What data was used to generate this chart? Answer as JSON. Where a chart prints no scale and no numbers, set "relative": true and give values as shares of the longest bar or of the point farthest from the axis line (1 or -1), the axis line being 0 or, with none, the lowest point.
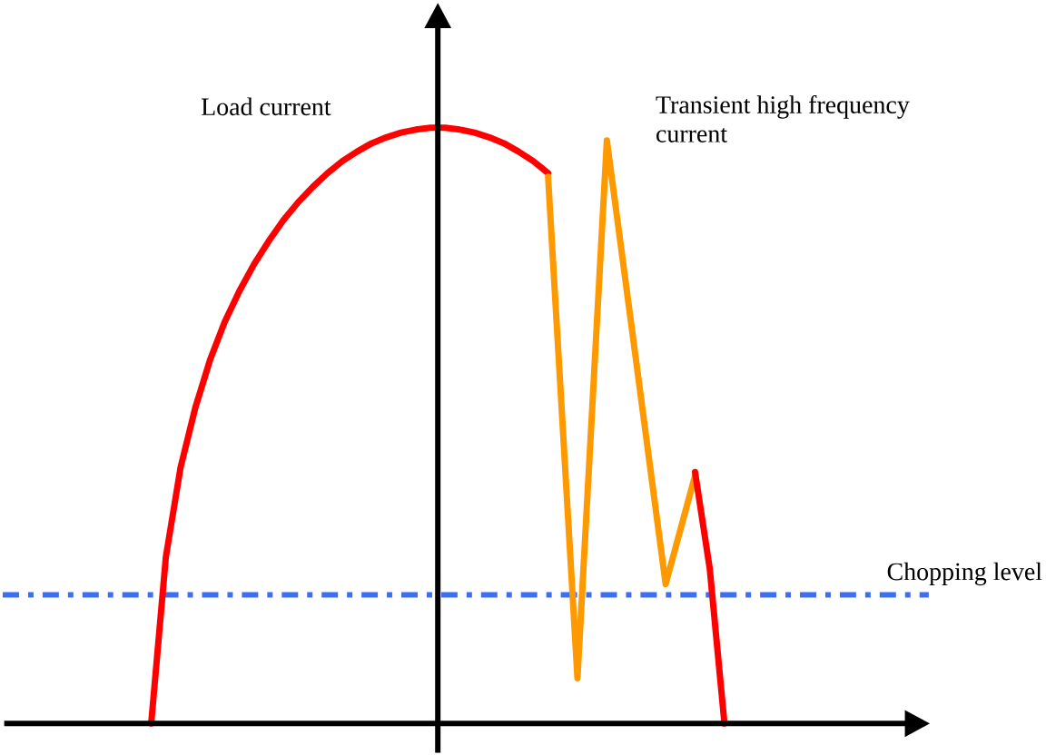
{
  "chart_data": {
    "type": "line",
    "relative": true,
    "categories": [
      null,
      null,
      null,
      null,
      null,
      null,
      null,
      null,
      null,
      null,
      null,
      null,
      null,
      null,
      null,
      null,
      null,
      null,
      null,
      null,
      null,
      null,
      null,
      null,
      null,
      null,
      null,
      null,
      null,
      null,
      null,
      null,
      null,
      null,
      null,
      null,
      null,
      null,
      null,
      null
    ],
    "series": [
      {
        "name": "Load current",
        "color": "#ff0000",
        "values": [
          0,
          0.28,
          0.43,
          0.53,
          0.61,
          0.674,
          0.726,
          0.771,
          0.81,
          0.845,
          0.875,
          0.901,
          0.924,
          0.944,
          0.96,
          0.974,
          0.984,
          0.992,
          0.997,
          1,
          1,
          0.997,
          0.992,
          0.984,
          0.974,
          0.96,
          0.944,
          0.924,
          null,
          null,
          null,
          null,
          null,
          null,
          null,
          null,
          null,
          null,
          null,
          null
        ]
      },
      {
        "name": "Transient high frequency current",
        "color": "#ff9900",
        "values": [
          null,
          null,
          null,
          null,
          null,
          null,
          null,
          null,
          null,
          null,
          null,
          null,
          null,
          null,
          null,
          null,
          null,
          null,
          null,
          null,
          null,
          null,
          null,
          null,
          null,
          null,
          null,
          0.918,
          0.497,
          0.076,
          0.528,
          0.979,
          0.793,
          0.607,
          0.42,
          0.234,
          0.325,
          0.416,
          null,
          null
        ]
      },
      {
        "color": "#ff0000",
        "values": [
          null,
          null,
          null,
          null,
          null,
          null,
          null,
          null,
          null,
          null,
          null,
          null,
          null,
          null,
          null,
          null,
          null,
          null,
          null,
          null,
          null,
          null,
          null,
          null,
          null,
          null,
          null,
          null,
          null,
          null,
          null,
          null,
          null,
          null,
          null,
          null,
          null,
          0.422,
          0.26,
          0
        ]
      }
    ],
    "ref_lines": [
      {
        "axis": "y",
        "value": 0.216,
        "label": "Chopping level",
        "color": "#3d6ff5",
        "line_style": "dashed"
      }
    ],
    "marker": "none",
    "line_style": "solid"
  }
}
